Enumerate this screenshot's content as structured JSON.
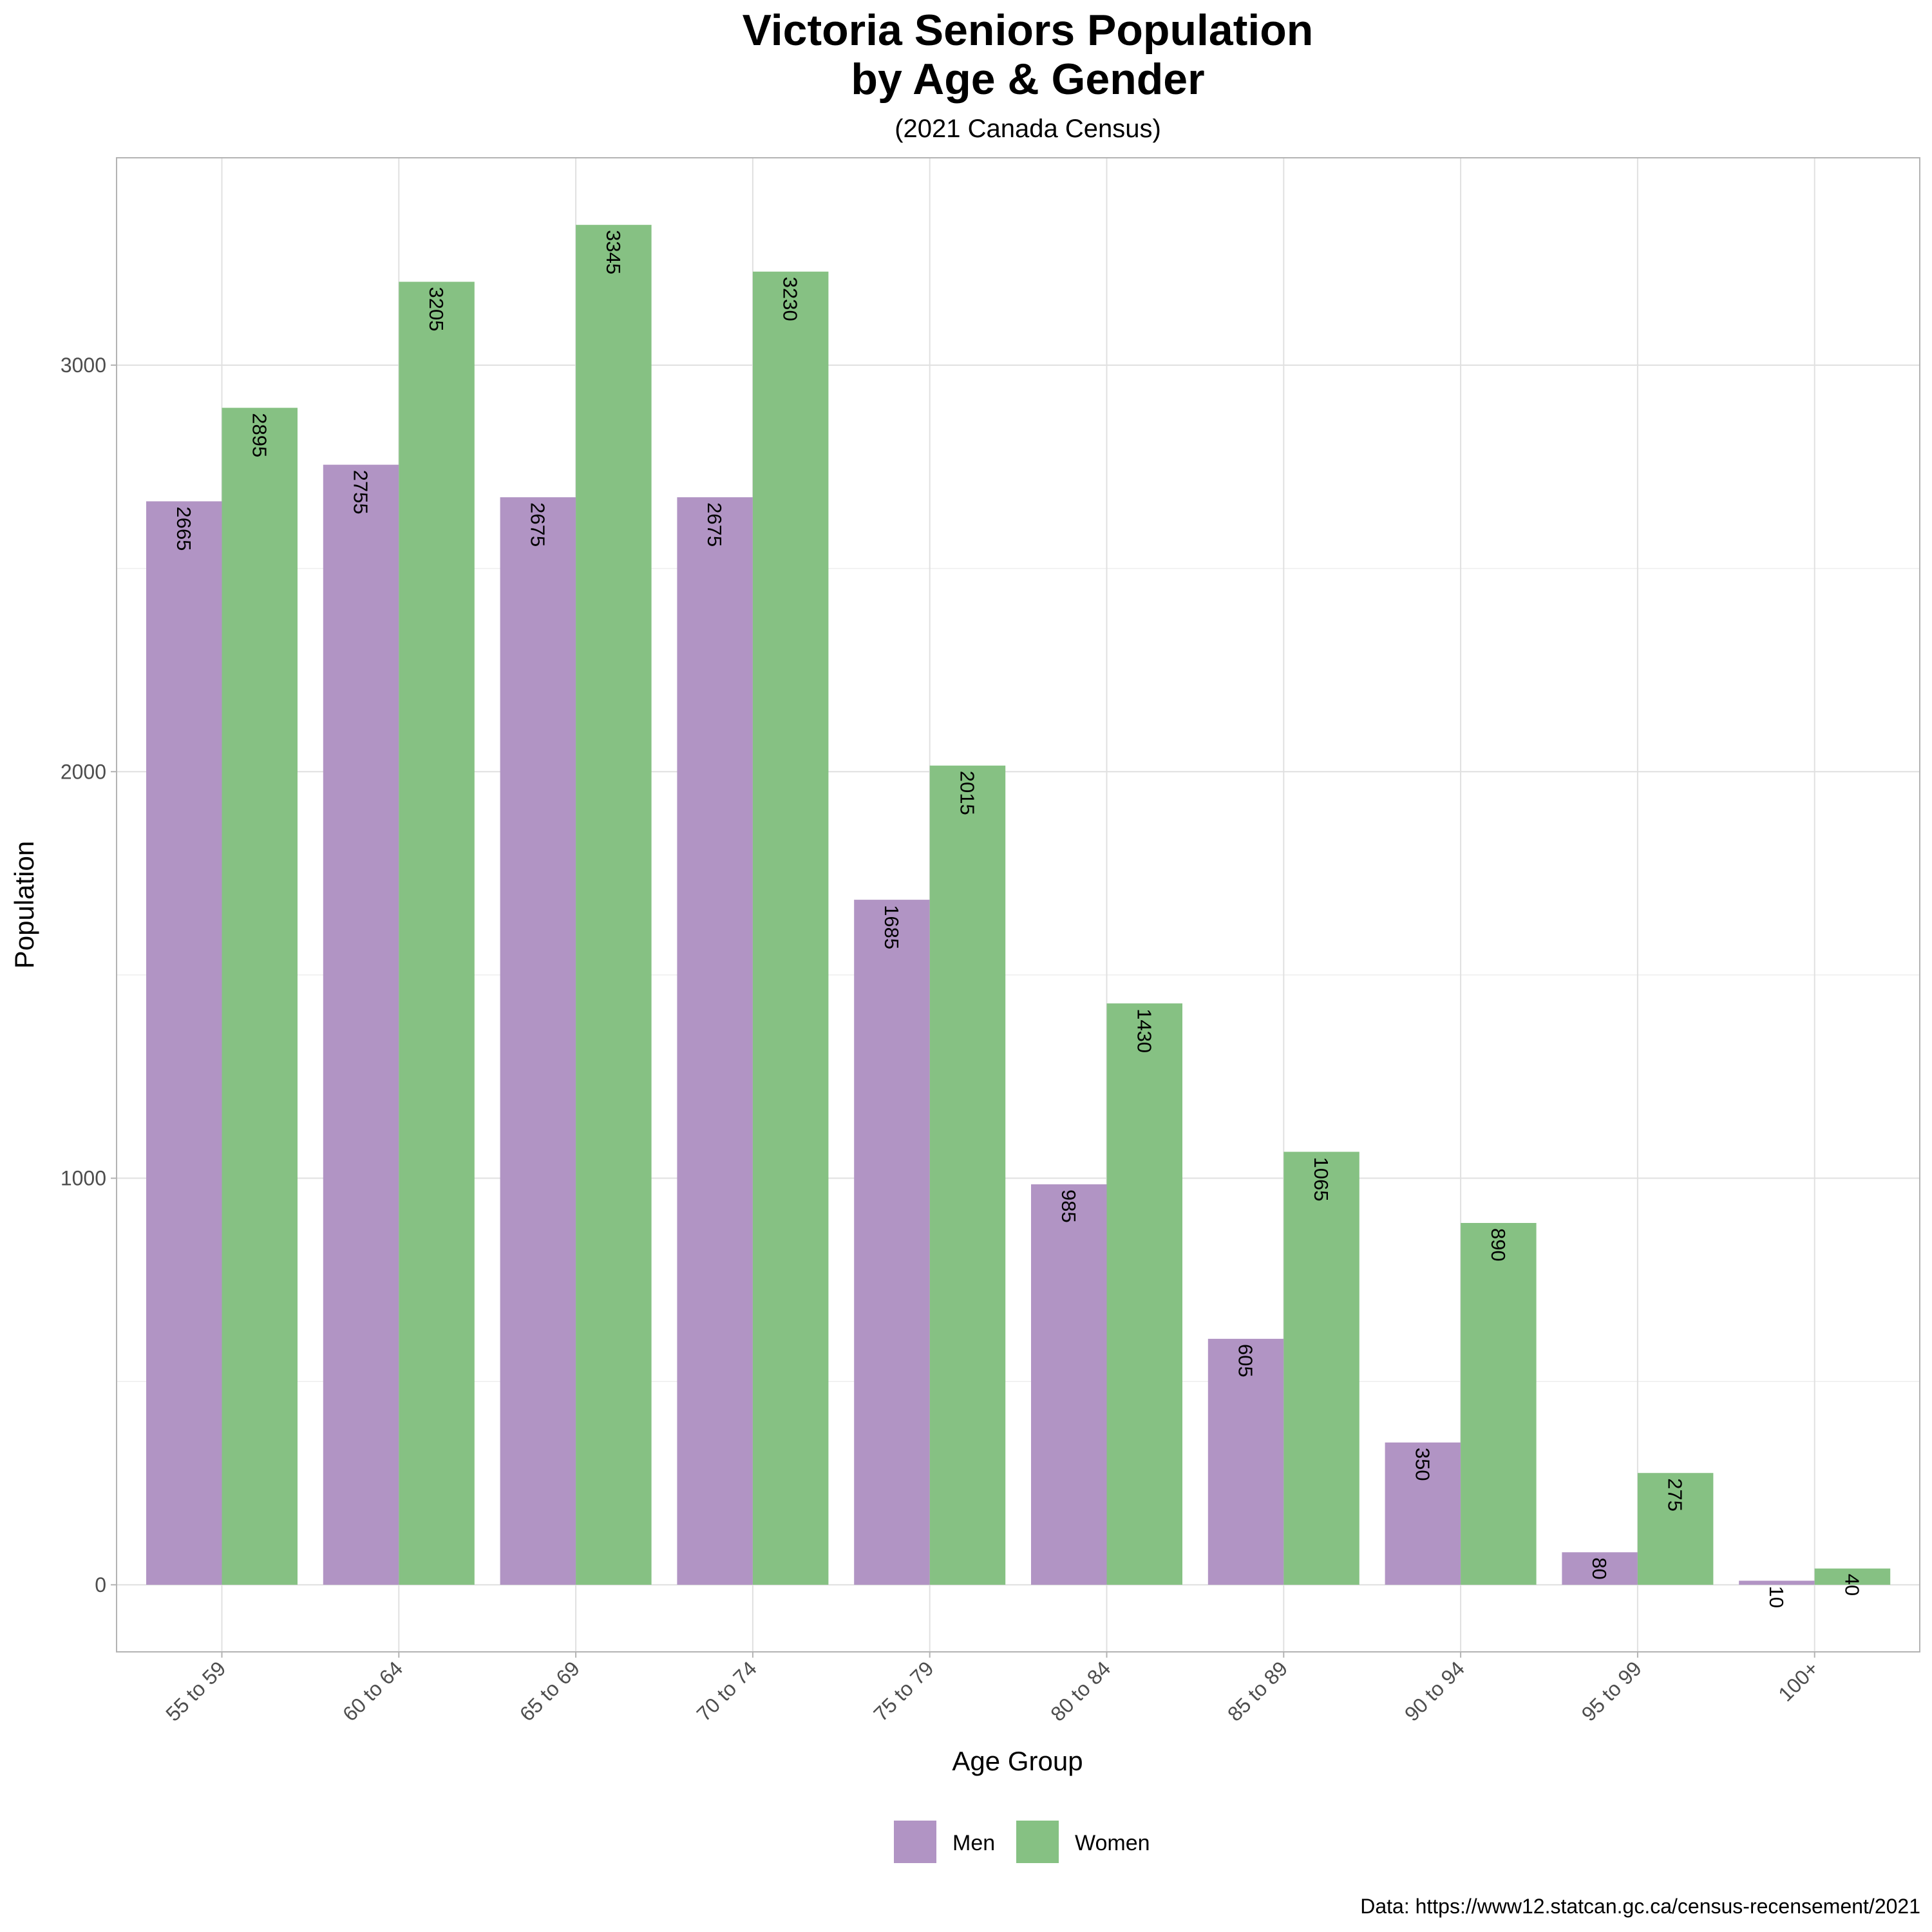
{
  "chart_data": {
    "type": "bar",
    "title_line1": "Victoria Seniors Population",
    "title_line2": "by Age & Gender",
    "subtitle": "(2021 Canada Census)",
    "xlabel": "Age Group",
    "ylabel": "Population",
    "caption": "Data: https://www12.statcan.gc.ca/census-recensement/2021",
    "categories": [
      "55 to 59",
      "60 to 64",
      "65 to 69",
      "70 to 74",
      "75 to 79",
      "80 to 84",
      "85 to 89",
      "90 to 94",
      "95 to 99",
      "100+"
    ],
    "series": [
      {
        "name": "Men",
        "color": "#b194c4",
        "values": [
          2665,
          2755,
          2675,
          2675,
          1685,
          985,
          605,
          350,
          80,
          10
        ]
      },
      {
        "name": "Women",
        "color": "#86c183",
        "values": [
          2895,
          3205,
          3345,
          3230,
          2015,
          1430,
          1065,
          890,
          275,
          40
        ]
      }
    ],
    "y_ticks": [
      0,
      1000,
      2000,
      3000
    ],
    "ylim": [
      -165,
      3510
    ],
    "grid": true,
    "legend_position": "bottom"
  }
}
